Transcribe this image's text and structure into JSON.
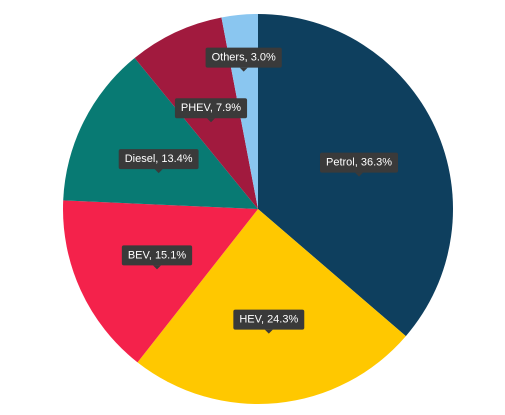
{
  "chart_data": {
    "type": "pie",
    "values": [
      36.3,
      24.3,
      15.1,
      13.4,
      7.9,
      3.0
    ],
    "value_labels": [
      "Petrol, 36.3%",
      "HEV, 24.3%",
      "BEV, 15.1%",
      "Diesel, 13.4%",
      "PHEV, 7.9%",
      "Others, 3.0%"
    ],
    "colors": [
      "#0e3f5e",
      "#ffc800",
      "#f4224b",
      "#087a73",
      "#a11a3e",
      "#8ac6f0"
    ]
  }
}
